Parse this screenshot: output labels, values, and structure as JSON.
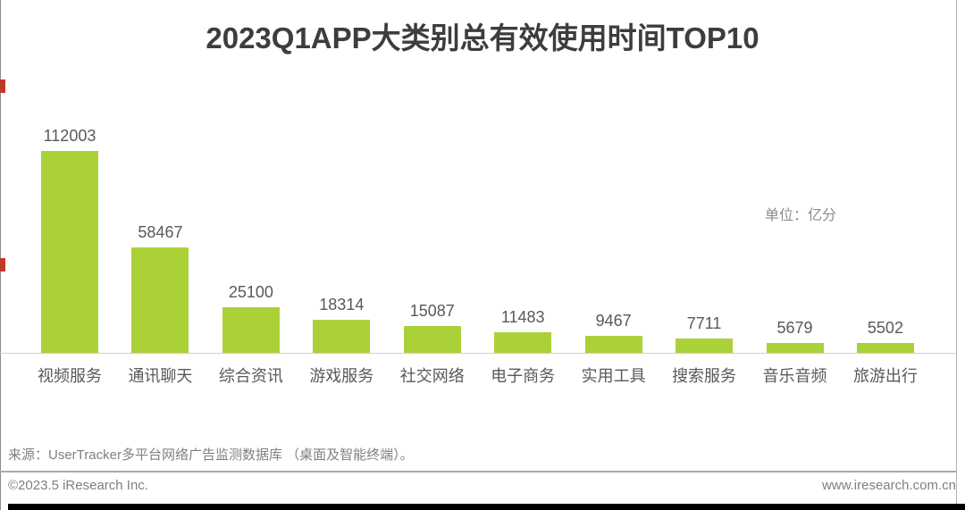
{
  "title": "2023Q1APP大类别总有效使用时间TOP10",
  "unit_label": "单位：亿分",
  "chart_data": {
    "type": "bar",
    "title": "2023Q1APP大类别总有效使用时间TOP10",
    "unit": "亿分",
    "categories": [
      "视频服务",
      "通讯聊天",
      "综合资讯",
      "游戏服务",
      "社交网络",
      "电子商务",
      "实用工具",
      "搜索服务",
      "音乐音频",
      "旅游出行"
    ],
    "values": [
      112003,
      58467,
      25100,
      18314,
      15087,
      11483,
      9467,
      7711,
      5679,
      5502
    ],
    "value_labels_shown": true,
    "bar_color": "#abd138",
    "ylim": [
      0,
      120000
    ],
    "grid": false,
    "legend": false,
    "xlabel": "",
    "ylabel": ""
  },
  "footer": {
    "source": "来源：UserTracker多平台网络广告监测数据库 （桌面及智能终端）。",
    "copyright": "©2023.5 iResearch Inc.",
    "website": "www.iresearch.com.cn"
  },
  "colors": {
    "bar_green": "#abd138",
    "accent_red": "#c0392b",
    "title_text": "#3d3d3d",
    "label_text": "#595959",
    "footer_text": "#7f7f7f",
    "bottom_bar": "#000000"
  }
}
